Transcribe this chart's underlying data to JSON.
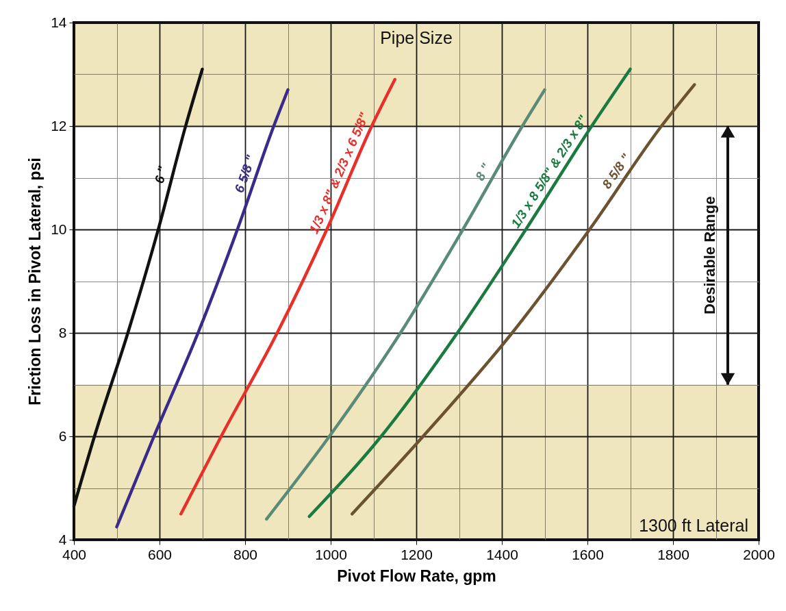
{
  "chart_data": {
    "type": "line",
    "xlabel": "Pivot Flow Rate, gpm",
    "ylabel": "Friction Loss in Pivot Lateral, psi",
    "xlim": [
      400,
      2000
    ],
    "ylim": [
      4,
      14
    ],
    "xticks": [
      400,
      600,
      800,
      1000,
      1200,
      1400,
      1600,
      1800,
      2000
    ],
    "yticks": [
      4,
      6,
      8,
      10,
      12,
      14
    ],
    "grid": true,
    "series": [
      {
        "name": "6 \"",
        "color": "#111111",
        "x": [
          400,
          448,
          526,
          597,
          661,
          700
        ],
        "values": [
          4.65,
          6,
          8,
          10,
          12,
          13.1
        ]
      },
      {
        "name": "6 5/8 \"",
        "color": "#3a2a8a",
        "x": [
          500,
          587,
          690,
          782,
          867,
          900
        ],
        "values": [
          4.25,
          6,
          8,
          10,
          12,
          12.7
        ]
      },
      {
        "name": "1/3 x 8\" & 2/3 x 6 5/8\"",
        "color": "#e8302a",
        "x": [
          650,
          744,
          875,
          991,
          1096,
          1150
        ],
        "values": [
          4.5,
          6,
          8,
          10,
          12,
          12.9
        ]
      },
      {
        "name": "8 \"",
        "color": "#5a8a78",
        "x": [
          850,
          997,
          1163,
          1309,
          1448,
          1500
        ],
        "values": [
          4.4,
          6,
          8,
          10,
          12,
          12.7
        ]
      },
      {
        "name": "1/3 x 8 5/8\" & 2/3 x 8\"",
        "color": "#1a7a40",
        "x": [
          950,
          1118,
          1296,
          1456,
          1610,
          1700
        ],
        "values": [
          4.45,
          6,
          8,
          10,
          12,
          13.1
        ]
      },
      {
        "name": "8 5/8 \"",
        "color": "#6b5230",
        "x": [
          1050,
          1216,
          1424,
          1605,
          1773,
          1850
        ],
        "values": [
          4.5,
          6,
          8,
          10,
          12,
          12.8
        ]
      }
    ],
    "bands": [
      {
        "axis": "y",
        "from": 4,
        "to": 7,
        "color": "#f0e6bd"
      },
      {
        "axis": "y",
        "from": 12,
        "to": 14,
        "color": "#f0e6bd"
      }
    ],
    "annotations": [
      "Pipe Size",
      "1300 ft Lateral",
      "Desirable Range"
    ]
  }
}
